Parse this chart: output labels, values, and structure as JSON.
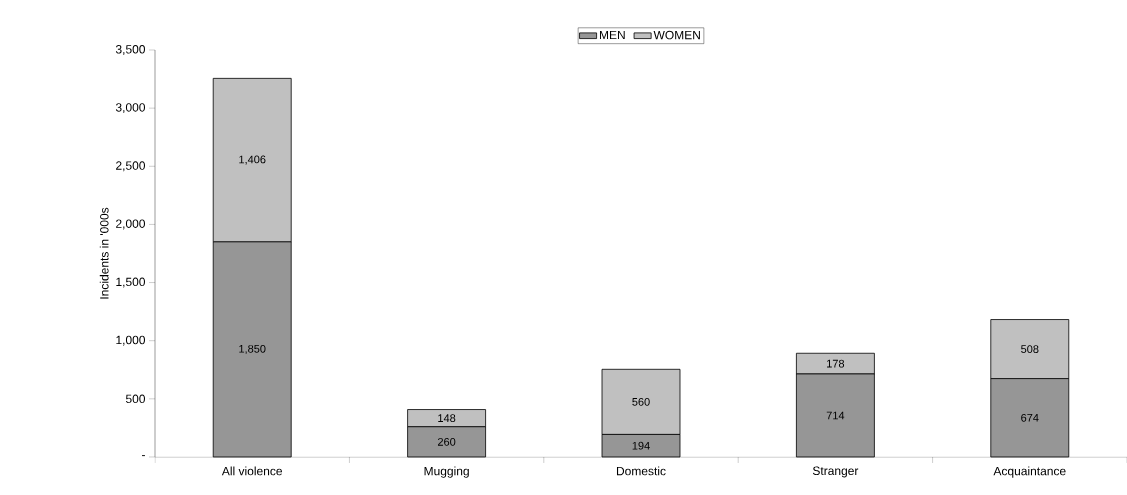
{
  "chart_data": {
    "type": "bar",
    "stacked": true,
    "ylabel": "Incidents in '000s",
    "categories": [
      "All violence",
      "Mugging",
      "Domestic",
      "Stranger",
      "Acquaintance"
    ],
    "series": [
      {
        "name": "MEN",
        "color": "#969696",
        "values": [
          1850,
          260,
          194,
          714,
          674
        ],
        "value_labels": [
          "1,850",
          "260",
          "194",
          "714",
          "674"
        ]
      },
      {
        "name": "WOMEN",
        "color": "#c0c0c0",
        "values": [
          1406,
          148,
          560,
          178,
          508
        ],
        "value_labels": [
          "1,406",
          "148",
          "560",
          "178",
          "508"
        ]
      }
    ],
    "ylim": [
      0,
      3500
    ],
    "yticks": [
      {
        "value": 0,
        "label": "-"
      },
      {
        "value": 500,
        "label": "500"
      },
      {
        "value": 1000,
        "label": "1,000"
      },
      {
        "value": 1500,
        "label": "1,500"
      },
      {
        "value": 2000,
        "label": "2,000"
      },
      {
        "value": 2500,
        "label": "2,500"
      },
      {
        "value": 3000,
        "label": "3,000"
      },
      {
        "value": 3500,
        "label": "3,500"
      }
    ],
    "legend": "top",
    "grid": false
  }
}
